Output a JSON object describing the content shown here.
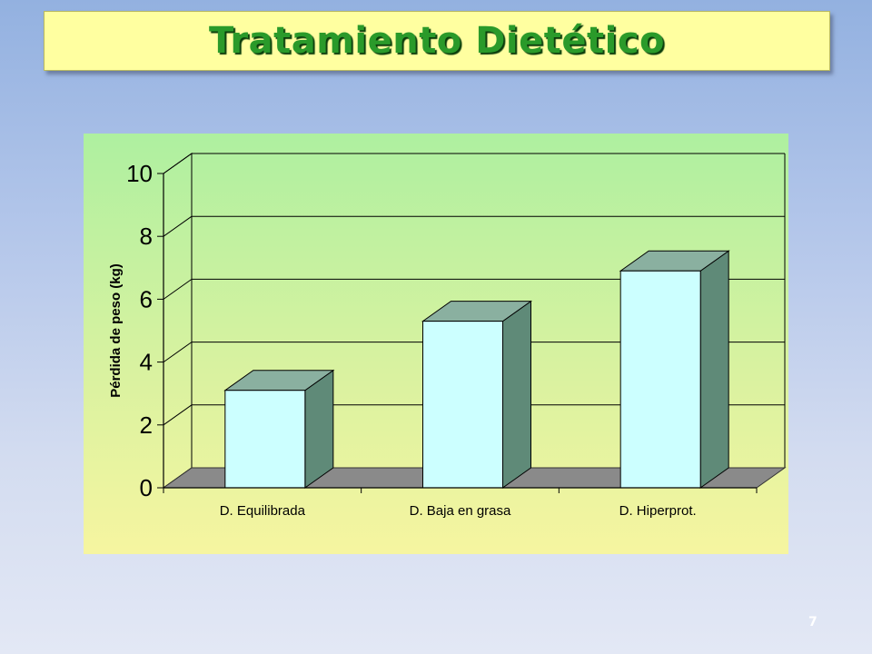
{
  "slide": {
    "title": "Tratamiento Dietético",
    "page_number": "7"
  },
  "chart_data": {
    "type": "bar",
    "categories": [
      "D. Equilibrada",
      "D. Baja en grasa",
      "D. Hiperprot."
    ],
    "values": [
      3.1,
      5.3,
      6.9
    ],
    "ylabel": "Pérdida de peso (kg)",
    "xlabel": "",
    "ylim": [
      0,
      10
    ],
    "yticks": [
      "0",
      "2",
      "4",
      "6",
      "8",
      "10"
    ],
    "grid": true,
    "colors": {
      "bar_front": "#ccffff",
      "bar_side": "#5f8a78",
      "bar_top": "#8ab0a0",
      "floor": "#8a8a8a",
      "grid": "#000000"
    }
  }
}
